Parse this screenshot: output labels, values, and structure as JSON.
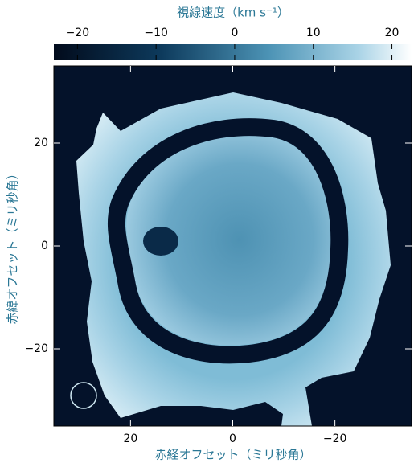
{
  "chart_data": {
    "type": "velocity-map",
    "colorbar_label": "視線速度（km s⁻¹）",
    "clim": [
      -23,
      22.5
    ],
    "cticks": [
      {
        "value": -20,
        "label": "−20"
      },
      {
        "value": -10,
        "label": "−10"
      },
      0,
      10,
      20
    ],
    "xlabel": "赤経オフセット（ミリ秒角）",
    "ylabel": "赤緯オフセット（ミリ秒角）",
    "xlim": [
      35,
      -35
    ],
    "ylim": [
      -35,
      35
    ],
    "xticks": [
      20,
      0,
      {
        "value": -20,
        "label": "−20"
      }
    ],
    "yticks": [
      20,
      0,
      {
        "value": -20,
        "label": "−20"
      }
    ]
  }
}
